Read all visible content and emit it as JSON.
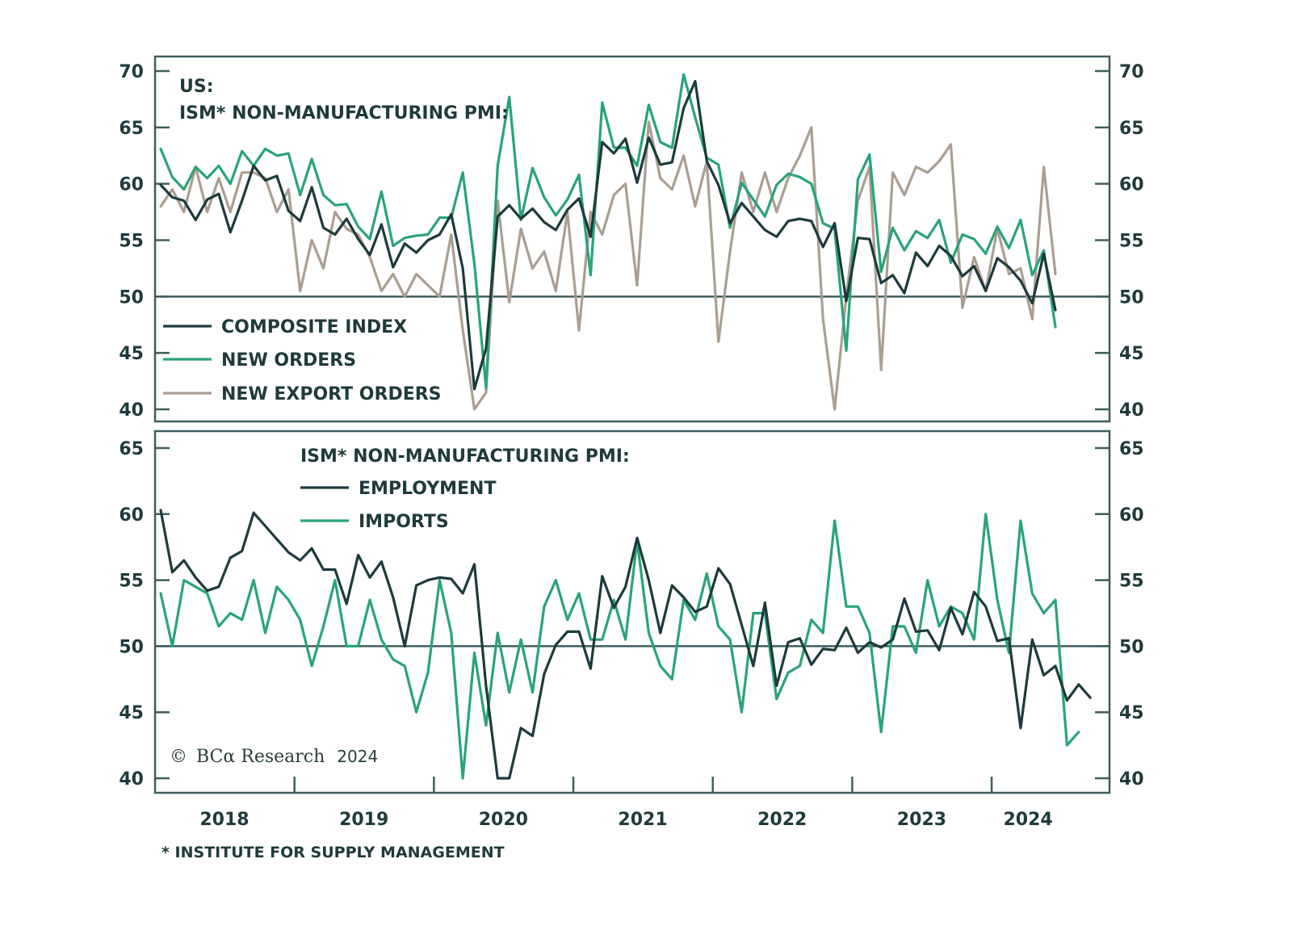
{
  "colors": {
    "composite": "#1d3a3c",
    "new_orders": "#2aa37a",
    "new_export_orders": "#aa9e92",
    "employment": "#1d3a3c",
    "imports": "#2aa37a",
    "axis": "#3f5d5d",
    "text": "#1f3a3a"
  },
  "footnote": "* INSTITUTE FOR SUPPLY MANAGEMENT",
  "copyright": {
    "symbol": "©",
    "brand": "BCα Research",
    "year": "2024"
  },
  "chart_data": [
    {
      "type": "line",
      "title_line1": "US:",
      "title_line2": "ISM* NON-MANUFACTURING PMI:",
      "ylim": [
        40,
        70
      ],
      "yticks": [
        "70",
        "65",
        "60",
        "55",
        "50",
        "45",
        "40"
      ],
      "ytick_values": [
        70,
        65,
        60,
        55,
        50,
        45,
        40
      ],
      "reference_line": 50,
      "legend_placement": "bottom-left",
      "x_start": "2018-01",
      "x_freq": "monthly",
      "series": [
        {
          "name": "COMPOSITE INDEX",
          "key": "composite",
          "values": [
            59.9,
            58.8,
            58.5,
            56.8,
            58.6,
            59.1,
            55.7,
            58.5,
            61.6,
            60.3,
            60.7,
            57.6,
            56.7,
            59.7,
            56.1,
            55.5,
            56.9,
            55.1,
            53.7,
            56.4,
            52.6,
            54.7,
            53.9,
            55.0,
            55.5,
            57.3,
            52.5,
            41.8,
            45.4,
            57.1,
            58.1,
            56.9,
            57.8,
            56.6,
            55.9,
            57.7,
            58.7,
            55.3,
            63.7,
            62.7,
            64.0,
            60.1,
            64.1,
            61.7,
            61.9,
            66.7,
            69.1,
            62.0,
            59.9,
            56.5,
            58.3,
            57.1,
            55.9,
            55.3,
            56.7,
            56.9,
            56.7,
            54.4,
            56.5,
            49.6,
            55.2,
            55.1,
            51.2,
            51.9,
            50.3,
            53.9,
            52.7,
            54.5,
            53.6,
            51.8,
            52.7,
            50.5,
            53.4,
            52.6,
            51.4,
            49.4,
            53.8,
            48.8
          ]
        },
        {
          "name": "NEW ORDERS",
          "key": "new_orders",
          "values": [
            63.1,
            60.6,
            59.5,
            61.5,
            60.5,
            61.6,
            60.0,
            62.9,
            61.6,
            63.1,
            62.5,
            62.7,
            59.0,
            62.2,
            59.0,
            58.1,
            58.2,
            56.2,
            55.1,
            59.3,
            54.5,
            55.2,
            55.4,
            55.5,
            57.0,
            57.0,
            61.0,
            52.9,
            41.9,
            61.6,
            67.7,
            56.8,
            61.4,
            58.8,
            57.2,
            58.6,
            60.8,
            51.9,
            67.2,
            63.2,
            63.2,
            61.6,
            67.0,
            63.7,
            63.2,
            69.7,
            65.9,
            62.3,
            61.7,
            56.1,
            60.1,
            58.6,
            57.1,
            59.9,
            60.9,
            60.6,
            60.0,
            56.5,
            56.0,
            45.2,
            60.4,
            62.6,
            52.2,
            56.1,
            54.1,
            55.8,
            55.2,
            56.8,
            53.0,
            55.5,
            55.1,
            53.8,
            56.2,
            54.3,
            56.8,
            51.9,
            54.1,
            47.3
          ]
        },
        {
          "name": "NEW EXPORT ORDERS",
          "key": "new_export_orders",
          "values": [
            58.0,
            59.5,
            57.5,
            61.5,
            57.5,
            60.5,
            57.5,
            61.0,
            61.0,
            60.5,
            57.5,
            59.5,
            50.5,
            55.0,
            52.5,
            57.5,
            56.0,
            55.5,
            53.5,
            50.5,
            52.0,
            50.0,
            52.0,
            51.0,
            50.0,
            55.5,
            47.0,
            40.0,
            41.5,
            58.5,
            49.5,
            56.0,
            52.5,
            54.0,
            50.5,
            57.5,
            47.0,
            57.5,
            55.5,
            59.0,
            60.0,
            51.0,
            65.5,
            60.5,
            59.5,
            62.5,
            58.0,
            62.0,
            46.0,
            54.0,
            61.0,
            57.5,
            61.0,
            57.5,
            60.5,
            62.5,
            65.0,
            48.0,
            40.0,
            50.0,
            58.5,
            61.5,
            43.5,
            61.0,
            59.0,
            61.5,
            61.0,
            62.0,
            63.5,
            49.0,
            53.5,
            50.5,
            56.0,
            52.0,
            52.5,
            48.0,
            61.5,
            52.0
          ]
        }
      ]
    },
    {
      "type": "line",
      "title_line1": "ISM* NON-MANUFACTURING PMI:",
      "ylim": [
        40,
        65
      ],
      "yticks": [
        "65",
        "60",
        "55",
        "50",
        "45",
        "40"
      ],
      "ytick_values": [
        65,
        60,
        55,
        50,
        45,
        40
      ],
      "reference_line": 50,
      "legend_placement": "top-left",
      "x_start": "2018-01",
      "x_freq": "monthly",
      "xtick_labels": [
        "2018",
        "2019",
        "2020",
        "2021",
        "2022",
        "2023",
        "2024"
      ],
      "series": [
        {
          "name": "EMPLOYMENT",
          "key": "employment",
          "values": [
            60.3,
            55.6,
            56.5,
            55.2,
            54.2,
            54.5,
            56.7,
            57.2,
            60.1,
            59.1,
            58.1,
            57.1,
            56.5,
            57.4,
            55.8,
            55.8,
            53.2,
            56.9,
            55.2,
            56.4,
            53.7,
            50.0,
            54.6,
            55.0,
            55.2,
            55.1,
            54.0,
            56.2,
            47.0,
            40.0,
            40.0,
            43.8,
            43.2,
            47.9,
            50.1,
            51.1,
            51.1,
            48.3,
            55.3,
            52.9,
            54.5,
            58.2,
            55.0,
            51.0,
            54.6,
            53.7,
            52.6,
            53.0,
            55.9,
            54.7,
            51.6,
            48.5,
            53.3,
            47.0,
            50.3,
            50.6,
            48.6,
            49.8,
            49.7,
            51.4,
            49.5,
            50.3,
            49.9,
            50.5,
            53.6,
            51.1,
            51.2,
            49.7,
            52.9,
            50.9,
            54.1,
            53.0,
            50.4,
            50.6,
            43.8,
            50.5,
            47.8,
            48.5,
            45.9,
            47.1,
            46.1
          ]
        },
        {
          "name": "IMPORTS",
          "key": "imports",
          "values": [
            54.0,
            50.0,
            55.0,
            54.5,
            54.0,
            51.5,
            52.5,
            52.0,
            55.0,
            51.0,
            54.5,
            53.5,
            52.0,
            48.5,
            51.5,
            55.0,
            50.0,
            50.0,
            53.5,
            50.5,
            49.0,
            48.5,
            45.0,
            48.0,
            55.0,
            51.0,
            40.0,
            49.5,
            44.0,
            51.0,
            46.5,
            50.5,
            46.5,
            53.0,
            55.0,
            52.0,
            54.0,
            50.5,
            50.5,
            53.5,
            50.5,
            58.0,
            51.0,
            48.5,
            47.5,
            53.5,
            52.0,
            55.5,
            51.5,
            50.5,
            45.0,
            52.5,
            52.5,
            46.0,
            48.0,
            48.5,
            52.0,
            51.0,
            59.5,
            53.0,
            53.0,
            51.0,
            43.5,
            51.5,
            51.5,
            49.5,
            55.0,
            51.5,
            53.0,
            52.5,
            50.5,
            60.0,
            53.5,
            49.5,
            59.5,
            54.0,
            52.5,
            53.5,
            42.5,
            43.5
          ]
        }
      ]
    }
  ]
}
